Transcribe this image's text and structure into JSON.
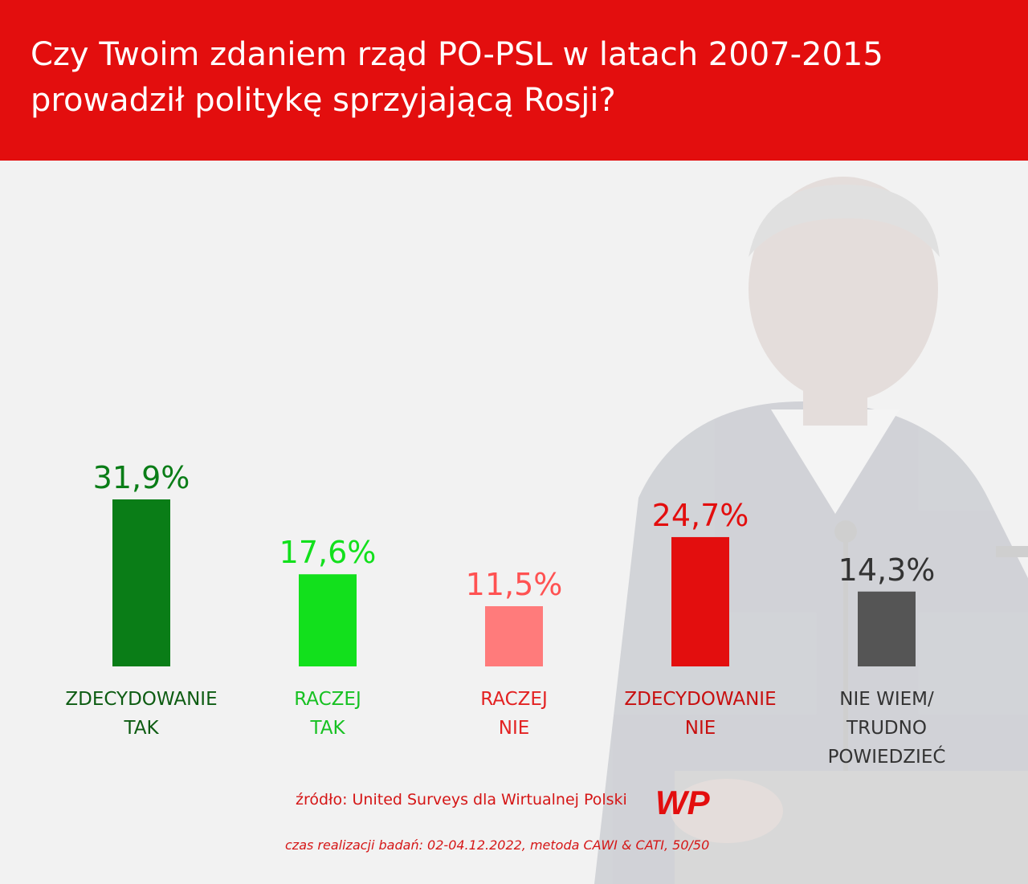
{
  "header": {
    "title_line1": "Czy Twoim zdaniem rząd PO-PSL w latach 2007-2015",
    "title_line2": "prowadził politykę sprzyjającą Rosji?"
  },
  "chart_data": {
    "type": "bar",
    "categories": [
      [
        "ZDECYDOWANIE",
        "TAK"
      ],
      [
        "RACZEJ",
        "TAK"
      ],
      [
        "RACZEJ",
        "NIE"
      ],
      [
        "ZDECYDOWANIE",
        "NIE"
      ],
      [
        "NIE WIEM/",
        "TRUDNO",
        "POWIEDZIEĆ"
      ]
    ],
    "values": [
      31.9,
      17.6,
      11.5,
      24.7,
      14.3
    ],
    "value_labels": [
      "31,9%",
      "17,6%",
      "11,5%",
      "24,7%",
      "14,3%"
    ],
    "colors": [
      "#0a7d17",
      "#12e01c",
      "#ff7b7b",
      "#e30e0e",
      "#555555"
    ],
    "label_colors": [
      "#0a7d17",
      "#12e01c",
      "#ff5252",
      "#e30e0e",
      "#333333"
    ],
    "category_label_colors": [
      "#0d5c12",
      "#17c122",
      "#e32222",
      "#c80f0f",
      "#333333"
    ],
    "title": "Czy Twoim zdaniem rząd PO-PSL w latach 2007-2015 prowadził politykę sprzyjającą Rosji?",
    "xlabel": "",
    "ylabel": "",
    "grid": false,
    "legend": "none"
  },
  "footer": {
    "source": "źródło: United Surveys dla Wirtualnej Polski",
    "logo_text": "WP",
    "method": "czas realizacji badań: 02-04.12.2022, metoda CAWI & CATI, 50/50"
  },
  "icons": {
    "logo": "wp-logo-icon",
    "photo": "speaker-photo"
  }
}
